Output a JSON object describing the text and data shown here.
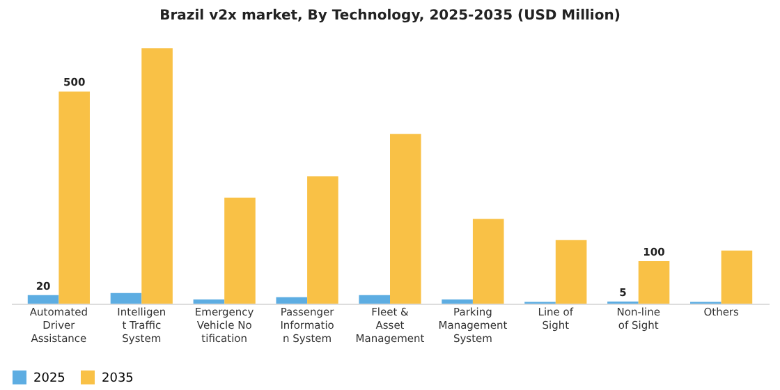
{
  "chart_data": {
    "type": "bar",
    "title": "Brazil v2x market, By Technology, 2025-2035 (USD Million)",
    "categories": [
      "Automated Driver Assistance",
      "Intelligent Traffic System",
      "Emergency Vehicle Notification",
      "Passenger Information System",
      "Fleet & Asset Management",
      "Parking Management System",
      "Line of Sight",
      "Non-line of Sight",
      "Others"
    ],
    "series": [
      {
        "name": "2025",
        "color": "#5dade2",
        "values": [
          20,
          25,
          10,
          15,
          20,
          10,
          4,
          5,
          4
        ],
        "value_labels": [
          "20",
          null,
          null,
          null,
          null,
          null,
          null,
          "5",
          null
        ]
      },
      {
        "name": "2035",
        "color": "#f9c146",
        "values": [
          500,
          602,
          250,
          300,
          400,
          200,
          150,
          100,
          125
        ],
        "value_labels": [
          "500",
          null,
          null,
          null,
          null,
          null,
          null,
          "100",
          null
        ]
      }
    ],
    "legend": "bottom",
    "grid": false
  }
}
